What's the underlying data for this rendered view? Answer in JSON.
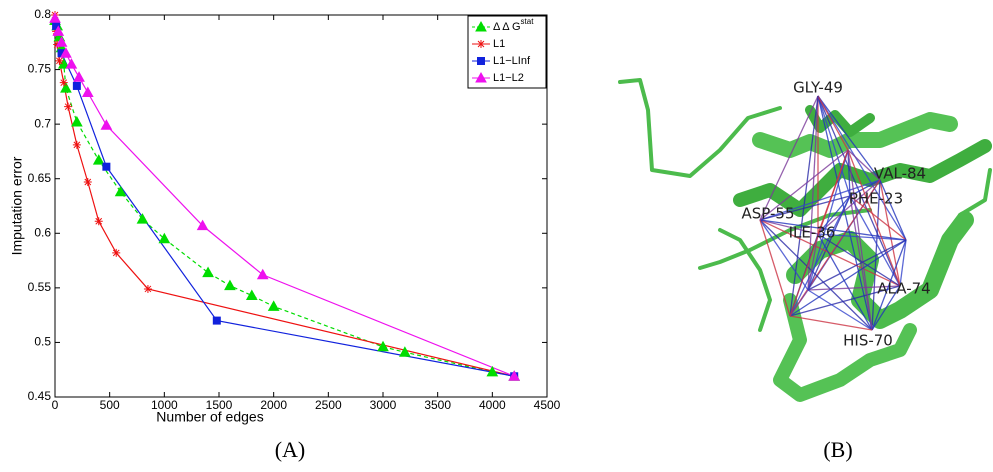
{
  "chart_data": {
    "type": "line",
    "panel_label": "(A)",
    "x_label": "Number of edges",
    "y_label": "Imputation error",
    "xlim": [
      0,
      4500
    ],
    "ylim": [
      0.45,
      0.8
    ],
    "xticks": [
      0,
      500,
      1000,
      1500,
      2000,
      2500,
      3000,
      3500,
      4000,
      4500
    ],
    "yticks": [
      0.45,
      0.5,
      0.55,
      0.6,
      0.65,
      0.7,
      0.75,
      0.8
    ],
    "legend": "upper right",
    "series": [
      {
        "name": "Δ Δ G",
        "name_superscript": "stat",
        "color": "#00dd00",
        "marker": "triangle",
        "line_style": "dashed",
        "x": [
          0,
          20,
          40,
          60,
          80,
          100,
          200,
          400,
          600,
          800,
          1000,
          1400,
          1600,
          1800,
          2000,
          3000,
          3200,
          4000,
          4200
        ],
        "values": [
          0.795,
          0.79,
          0.78,
          0.77,
          0.755,
          0.733,
          0.702,
          0.667,
          0.638,
          0.613,
          0.595,
          0.564,
          0.552,
          0.543,
          0.533,
          0.496,
          0.491,
          0.473,
          0.469
        ]
      },
      {
        "name": "L1",
        "color": "#ee1111",
        "marker": "star",
        "line_style": "solid",
        "x": [
          0,
          10,
          20,
          40,
          80,
          120,
          200,
          300,
          400,
          560,
          850,
          4200
        ],
        "values": [
          0.8,
          0.785,
          0.773,
          0.758,
          0.738,
          0.716,
          0.681,
          0.647,
          0.611,
          0.582,
          0.549,
          0.469
        ]
      },
      {
        "name": "L1−LInf",
        "color": "#1122dd",
        "marker": "square",
        "line_style": "solid",
        "x": [
          10,
          60,
          200,
          470,
          1480,
          4200
        ],
        "values": [
          0.79,
          0.765,
          0.735,
          0.661,
          0.52,
          0.469
        ]
      },
      {
        "name": "L1−L2",
        "color": "#ee11ee",
        "marker": "triangle",
        "line_style": "solid",
        "x": [
          0,
          30,
          60,
          100,
          150,
          220,
          300,
          470,
          1350,
          1900,
          4200
        ],
        "values": [
          0.797,
          0.785,
          0.775,
          0.765,
          0.755,
          0.743,
          0.729,
          0.699,
          0.607,
          0.562,
          0.469
        ]
      }
    ]
  },
  "structure": {
    "panel_label": "(B)",
    "residues": [
      "GLY-49",
      "VAL-84",
      "PHE-23",
      "ASP-55",
      "ILE-36",
      "ALA-74",
      "HIS-70"
    ]
  }
}
